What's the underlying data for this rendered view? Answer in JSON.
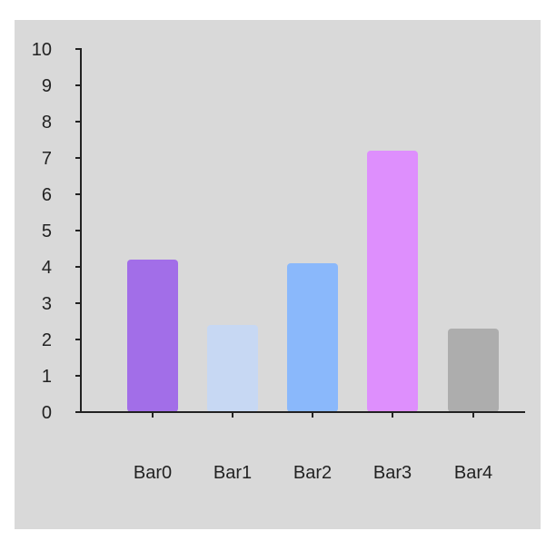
{
  "chart_data": {
    "type": "bar",
    "categories": [
      "Bar0",
      "Bar1",
      "Bar2",
      "Bar3",
      "Bar4"
    ],
    "values": [
      4.2,
      2.4,
      4.1,
      7.2,
      2.3
    ],
    "colors": [
      "#a26ee8",
      "#c7d8f3",
      "#8ab8fb",
      "#de8ffd",
      "#adadad"
    ],
    "ylim": [
      0,
      10
    ],
    "yticks": [
      "0",
      "1",
      "2",
      "3",
      "4",
      "5",
      "6",
      "7",
      "8",
      "9",
      "10"
    ],
    "title": "",
    "xlabel": "",
    "ylabel": "",
    "grid": false,
    "legend": "none",
    "background": "#d9d9d9"
  }
}
